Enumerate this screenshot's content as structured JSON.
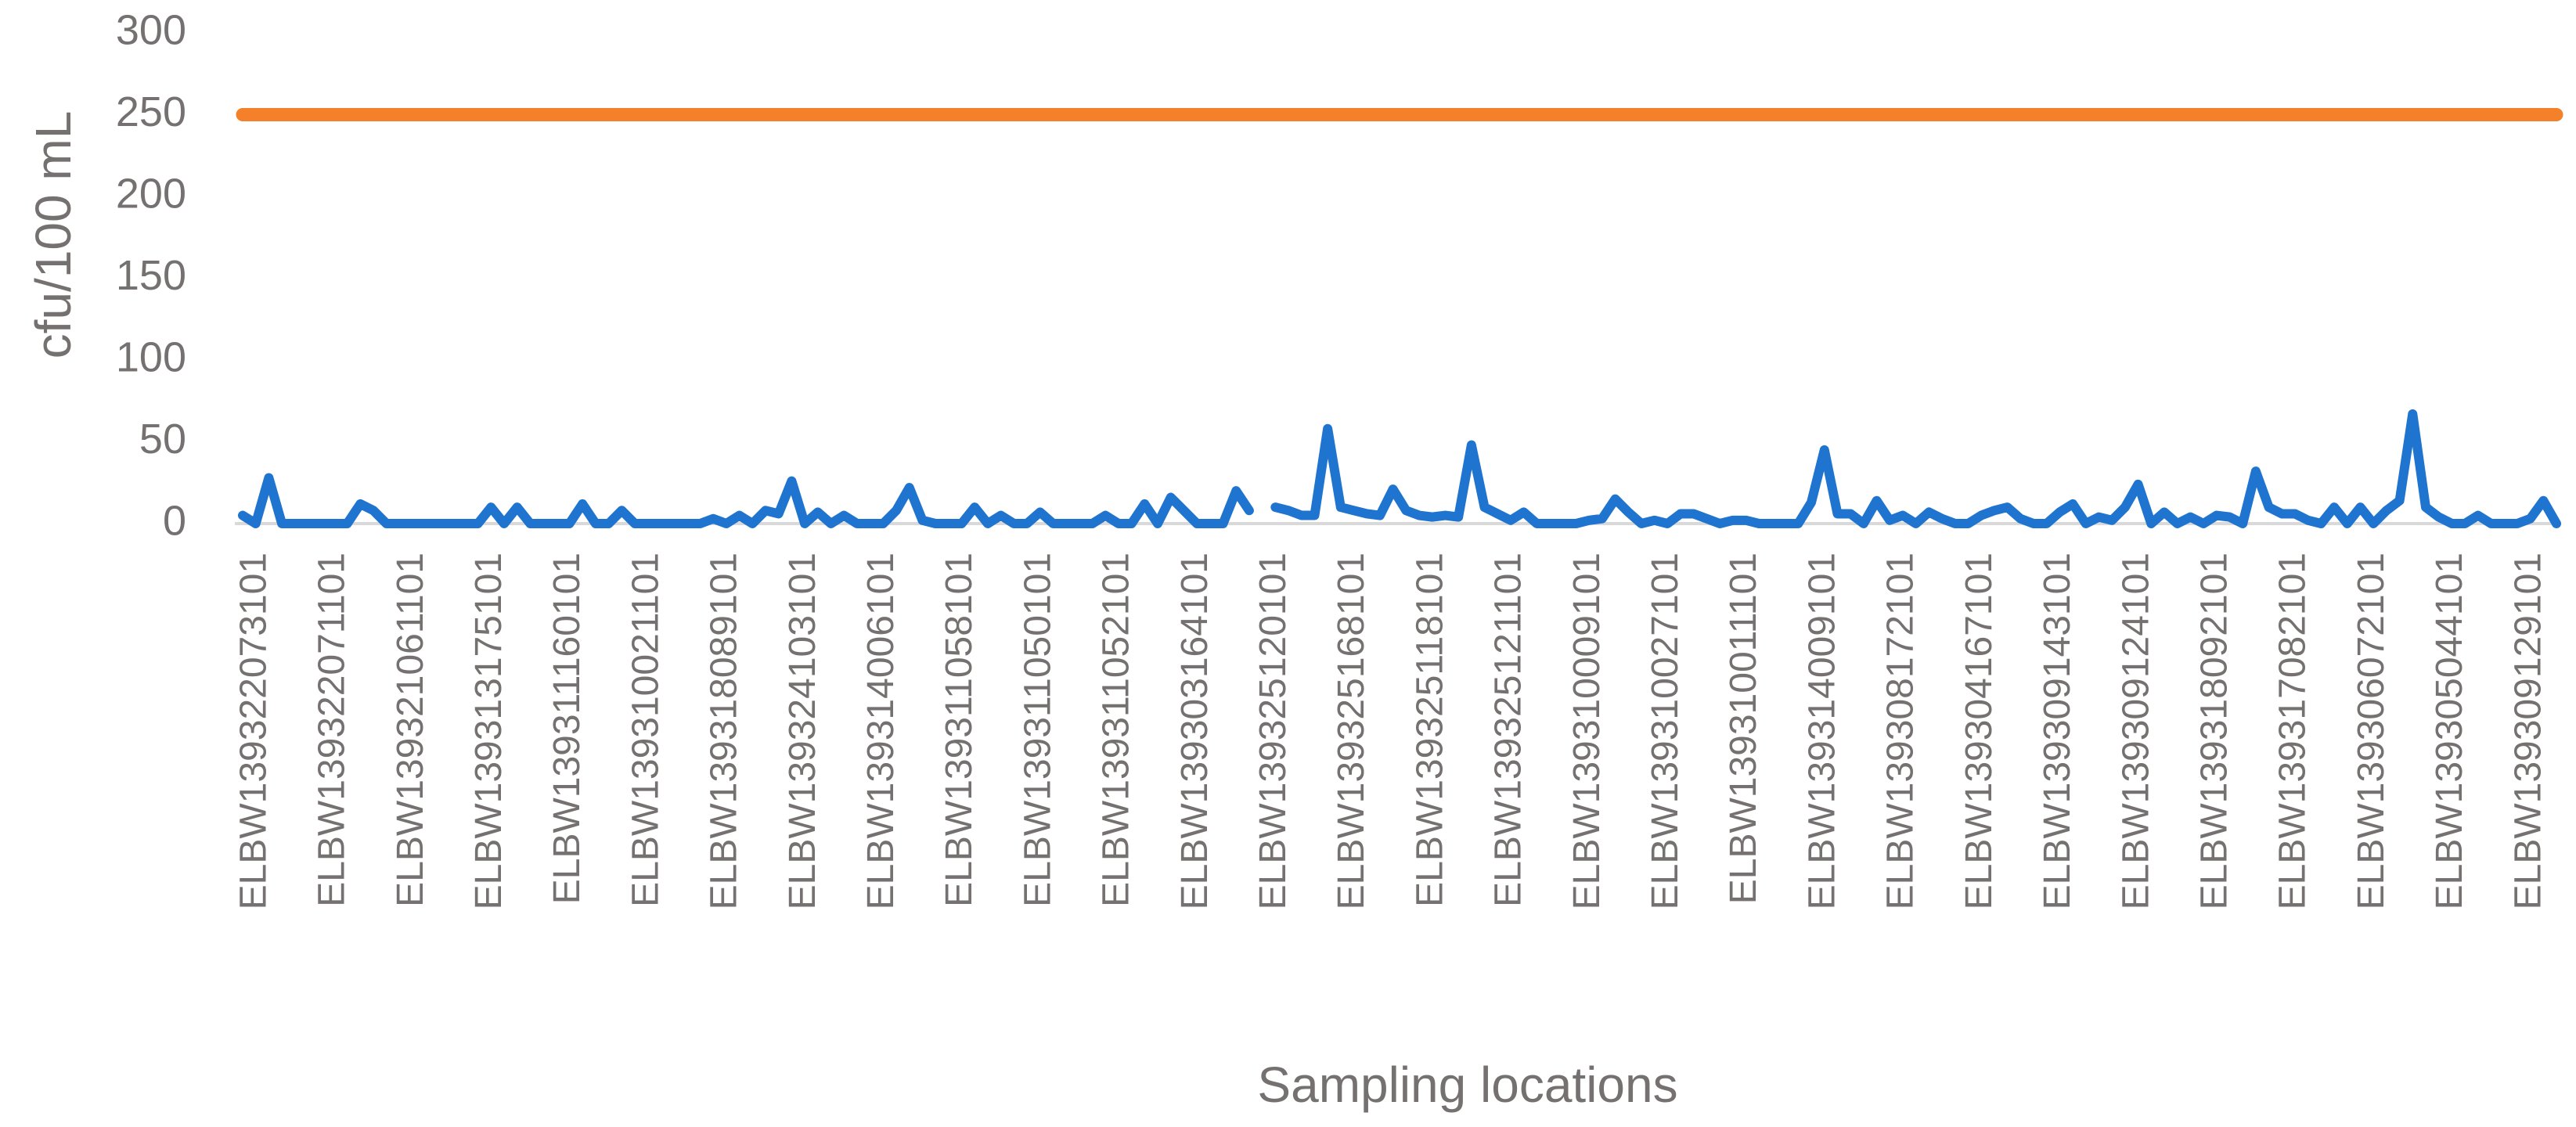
{
  "chart_data": {
    "type": "line",
    "xlabel": "Sampling locations",
    "ylabel": "cfu/100 mL",
    "ylim": [
      0,
      300
    ],
    "yticks": [
      0,
      50,
      100,
      150,
      200,
      250,
      300
    ],
    "grid": false,
    "categories": [
      null,
      "ELBW139322073101",
      null,
      null,
      null,
      null,
      null,
      "ELBW139322071101",
      null,
      null,
      null,
      null,
      null,
      "ELBW139321061101",
      null,
      null,
      null,
      null,
      null,
      "ELBW139313175101",
      null,
      null,
      null,
      null,
      null,
      "ELBW139311160101",
      null,
      null,
      null,
      null,
      null,
      "ELBW139310021101",
      null,
      null,
      null,
      null,
      null,
      "ELBW139318089101",
      null,
      null,
      null,
      null,
      null,
      "ELBW139324103101",
      null,
      null,
      null,
      null,
      null,
      "ELBW139314006101",
      null,
      null,
      null,
      null,
      null,
      "ELBW139311058101",
      null,
      null,
      null,
      null,
      null,
      "ELBW139311050101",
      null,
      null,
      null,
      null,
      null,
      "ELBW139311052101",
      null,
      null,
      null,
      null,
      null,
      "ELBW139303164101",
      null,
      null,
      null,
      null,
      null,
      "ELBW139325120101",
      null,
      null,
      null,
      null,
      null,
      "ELBW139325168101",
      null,
      null,
      null,
      null,
      null,
      "ELBW139325118101",
      null,
      null,
      null,
      null,
      null,
      "ELBW139325121101",
      null,
      null,
      null,
      null,
      null,
      "ELBW139310009101",
      null,
      null,
      null,
      null,
      null,
      "ELBW139310027101",
      null,
      null,
      null,
      null,
      null,
      "ELBW139310011101",
      null,
      null,
      null,
      null,
      null,
      "ELBW139314009101",
      null,
      null,
      null,
      null,
      null,
      "ELBW139308172101",
      null,
      null,
      null,
      null,
      null,
      "ELBW139304167101",
      null,
      null,
      null,
      null,
      null,
      "ELBW139309143101",
      null,
      null,
      null,
      null,
      null,
      "ELBW139309124101",
      null,
      null,
      null,
      null,
      null,
      "ELBW139318092101",
      null,
      null,
      null,
      null,
      null,
      "ELBW139317082101",
      null,
      null,
      null,
      null,
      null,
      "ELBW139306072101",
      null,
      null,
      null,
      null,
      null,
      "ELBW139305044101",
      null,
      null,
      null,
      null,
      null,
      "ELBW139309129101",
      null,
      null
    ],
    "series": [
      {
        "color": "#1f74cf",
        "values": [
          5,
          0,
          28,
          0,
          0,
          0,
          0,
          0,
          0,
          12,
          8,
          0,
          0,
          0,
          0,
          0,
          0,
          0,
          0,
          10,
          0,
          10,
          0,
          0,
          0,
          0,
          12,
          0,
          0,
          8,
          0,
          0,
          0,
          0,
          0,
          0,
          3,
          0,
          5,
          0,
          8,
          6,
          26,
          0,
          7,
          0,
          5,
          0,
          0,
          0,
          8,
          22,
          2,
          0,
          0,
          0,
          10,
          0,
          5,
          0,
          0,
          7,
          0,
          0,
          0,
          0,
          5,
          0,
          0,
          12,
          0,
          16,
          8,
          0,
          0,
          0,
          20,
          8,
          null,
          10,
          8,
          5,
          5,
          58,
          10,
          8,
          6,
          5,
          21,
          8,
          5,
          4,
          5,
          4,
          48,
          10,
          6,
          2,
          7,
          0,
          0,
          0,
          0,
          2,
          3,
          15,
          7,
          0,
          2,
          0,
          6,
          6,
          3,
          0,
          2,
          2,
          0,
          0,
          0,
          0,
          13,
          45,
          6,
          6,
          0,
          14,
          2,
          5,
          0,
          7,
          3,
          0,
          0,
          5,
          8,
          10,
          3,
          0,
          0,
          7,
          12,
          0,
          4,
          2,
          10,
          24,
          0,
          7,
          0,
          4,
          0,
          5,
          4,
          0,
          32,
          10,
          6,
          6,
          2,
          0,
          10,
          0,
          10,
          0,
          8,
          14,
          67,
          10,
          4,
          0,
          0,
          5,
          0,
          0,
          0,
          3,
          14,
          0
        ]
      },
      {
        "color": "#f5802a",
        "values": [
          250,
          250,
          250,
          250,
          250,
          250,
          250,
          250,
          250,
          250,
          250,
          250,
          250,
          250,
          250,
          250,
          250,
          250,
          250,
          250,
          250,
          250,
          250,
          250,
          250,
          250,
          250,
          250,
          250,
          250,
          250,
          250,
          250,
          250,
          250,
          250,
          250,
          250,
          250,
          250,
          250,
          250,
          250,
          250,
          250,
          250,
          250,
          250,
          250,
          250,
          250,
          250,
          250,
          250,
          250,
          250,
          250,
          250,
          250,
          250,
          250,
          250,
          250,
          250,
          250,
          250,
          250,
          250,
          250,
          250,
          250,
          250,
          250,
          250,
          250,
          250,
          250,
          250,
          250,
          250,
          250,
          250,
          250,
          250,
          250,
          250,
          250,
          250,
          250,
          250,
          250,
          250,
          250,
          250,
          250,
          250,
          250,
          250,
          250,
          250,
          250,
          250,
          250,
          250,
          250,
          250,
          250,
          250,
          250,
          250,
          250,
          250,
          250,
          250,
          250,
          250,
          250,
          250,
          250,
          250,
          250,
          250,
          250,
          250,
          250,
          250,
          250,
          250,
          250,
          250,
          250,
          250,
          250,
          250,
          250,
          250,
          250,
          250,
          250,
          250,
          250,
          250,
          250,
          250,
          250,
          250,
          250,
          250,
          250,
          250,
          250,
          250,
          250,
          250,
          250,
          250,
          250,
          250,
          250,
          250,
          250,
          250,
          250,
          250,
          250,
          250,
          250,
          250,
          250,
          250,
          250,
          250,
          250,
          250,
          250,
          250,
          250,
          250
        ]
      }
    ]
  }
}
